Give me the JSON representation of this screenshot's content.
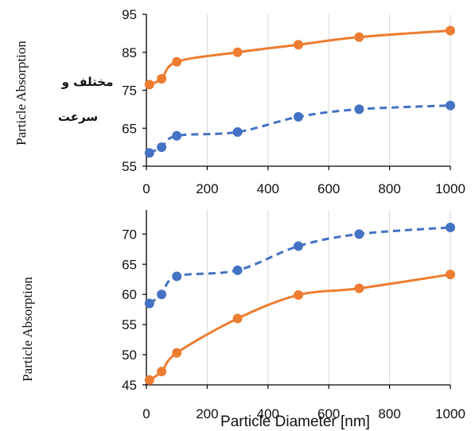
{
  "chart_data": [
    {
      "type": "line",
      "ylabel": "Particle Absorption",
      "xlim": [
        0,
        1000
      ],
      "ylim": [
        55,
        95
      ],
      "x_ticks": [
        0,
        200,
        400,
        600,
        800,
        1000
      ],
      "y_ticks": [
        55,
        65,
        75,
        85,
        95
      ],
      "overlay_text": [
        "مختلف و",
        "سرعت"
      ],
      "series": [
        {
          "color": "#ED7D31",
          "line_style": "solid",
          "x": [
            10,
            50,
            100,
            300,
            500,
            700,
            1000
          ],
          "y": [
            76.5,
            78,
            82.5,
            85,
            87,
            89,
            90.7
          ]
        },
        {
          "color": "#4472C4",
          "line_style": "dashed",
          "x": [
            10,
            50,
            100,
            300,
            500,
            700,
            1000
          ],
          "y": [
            58.5,
            60,
            63,
            64,
            68,
            70,
            71
          ]
        }
      ]
    },
    {
      "type": "line",
      "xlabel": "Particle Diameter [nm]",
      "ylabel": "Particle Absorption",
      "xlim": [
        0,
        1000
      ],
      "ylim": [
        45,
        74
      ],
      "x_ticks": [
        0,
        200,
        400,
        600,
        800,
        1000
      ],
      "y_ticks": [
        45,
        50,
        55,
        60,
        65,
        70
      ],
      "series": [
        {
          "color": "#4472C4",
          "line_style": "dashed",
          "x": [
            10,
            50,
            100,
            300,
            500,
            700,
            1000
          ],
          "y": [
            58.5,
            60,
            63,
            64,
            68,
            70,
            71.1
          ]
        },
        {
          "color": "#ED7D31",
          "line_style": "solid",
          "x": [
            10,
            50,
            100,
            300,
            500,
            700,
            1000
          ],
          "y": [
            45.8,
            47.2,
            50.3,
            56,
            59.9,
            61,
            63.3
          ]
        }
      ]
    }
  ]
}
